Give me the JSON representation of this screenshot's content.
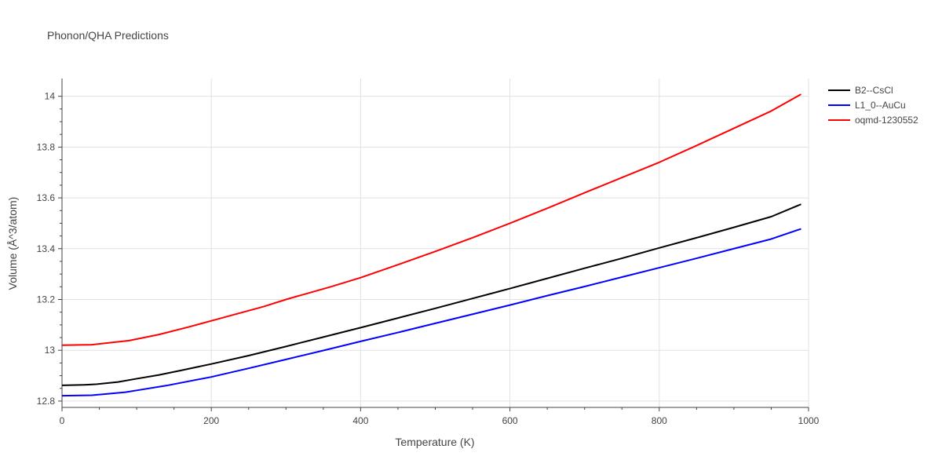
{
  "chart_data": {
    "type": "line",
    "title": "Phonon/QHA Predictions",
    "xlabel": "Temperature (K)",
    "ylabel": "Volume (Å^3/atom)",
    "xlim": [
      0,
      1000
    ],
    "ylim": [
      12.775,
      14.07
    ],
    "xticks": [
      0,
      200,
      400,
      600,
      800,
      1000
    ],
    "yticks": [
      12.8,
      13,
      13.2,
      13.4,
      13.6,
      13.8,
      14
    ],
    "xtick_labels": [
      "0",
      "200",
      "400",
      "600",
      "800",
      "1000"
    ],
    "ytick_labels": [
      "12.8",
      "13",
      "13.2",
      "13.4",
      "13.6",
      "13.8",
      "14"
    ],
    "grid": true,
    "legend_position": "top-right",
    "series": [
      {
        "name": "B2--CsCl",
        "color": "#000000",
        "x": [
          0,
          30,
          45,
          75,
          100,
          130,
          160,
          200,
          250,
          300,
          350,
          400,
          450,
          500,
          550,
          600,
          650,
          700,
          750,
          800,
          850,
          900,
          950,
          990
        ],
        "y": [
          12.862,
          12.864,
          12.866,
          12.875,
          12.888,
          12.903,
          12.921,
          12.946,
          12.979,
          13.015,
          13.052,
          13.089,
          13.127,
          13.165,
          13.204,
          13.243,
          13.283,
          13.323,
          13.362,
          13.403,
          13.443,
          13.484,
          13.526,
          13.575
        ]
      },
      {
        "name": "L1_0--AuCu",
        "color": "#0000ff",
        "x": [
          0,
          40,
          85,
          100,
          140,
          200,
          250,
          300,
          350,
          400,
          450,
          500,
          550,
          600,
          650,
          700,
          750,
          800,
          850,
          900,
          950,
          990
        ],
        "y": [
          12.821,
          12.823,
          12.835,
          12.842,
          12.861,
          12.895,
          12.929,
          12.964,
          12.999,
          13.035,
          13.07,
          13.106,
          13.142,
          13.178,
          13.215,
          13.251,
          13.288,
          13.325,
          13.362,
          13.4,
          13.438,
          13.478
        ]
      },
      {
        "name": "oqmd-1230552",
        "color": "#ff0000",
        "x": [
          0,
          40,
          90,
          130,
          170,
          200,
          270,
          300,
          360,
          400,
          450,
          500,
          550,
          600,
          650,
          700,
          750,
          800,
          850,
          900,
          950,
          990
        ],
        "y": [
          13.02,
          13.022,
          13.038,
          13.062,
          13.092,
          13.116,
          13.172,
          13.2,
          13.25,
          13.286,
          13.337,
          13.389,
          13.443,
          13.5,
          13.559,
          13.62,
          13.68,
          13.74,
          13.806,
          13.874,
          13.942,
          14.008
        ]
      }
    ]
  }
}
